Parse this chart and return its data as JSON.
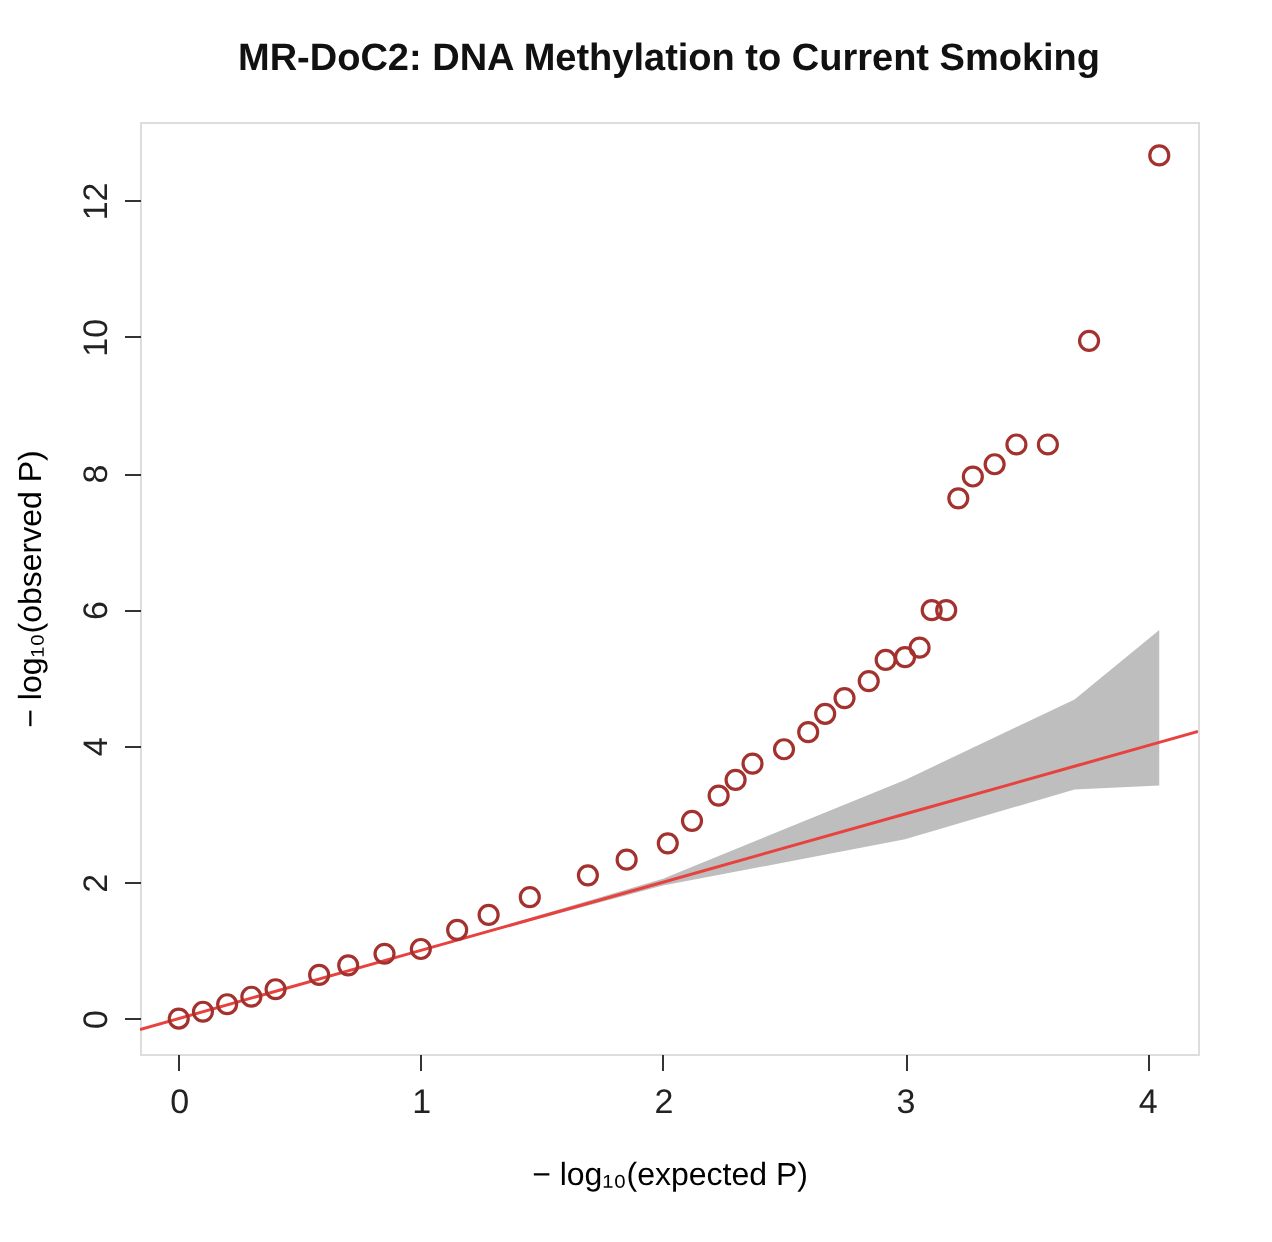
{
  "chart_data": {
    "type": "scatter",
    "title": "MR-DoC2: DNA Methylation to Current Smoking",
    "xlabel": "− log₁₀(expected P)",
    "ylabel": "− log₁₀(observed P)",
    "xlim": [
      -0.16,
      4.21
    ],
    "ylim": [
      -0.52,
      13.15
    ],
    "xticks": [
      0,
      1,
      2,
      3,
      4
    ],
    "yticks": [
      0,
      2,
      4,
      6,
      8,
      10,
      12
    ],
    "grid": false,
    "marker": "circle",
    "series": [
      {
        "type": "line",
        "marker": "none",
        "color": "#e8423f",
        "x": [
          -0.16,
          1,
          2,
          3,
          3.7,
          4.05,
          4.21
        ],
        "values": [
          -0.16,
          1,
          2,
          3,
          3.7,
          4.05,
          4.21
        ],
        "lower": [
          null,
          1,
          1.95,
          2.63,
          3.36,
          3.42,
          null
        ],
        "upper": [
          null,
          1,
          2.05,
          3.5,
          4.68,
          5.7,
          null
        ]
      },
      {
        "color": "#a3312e",
        "x": [
          0,
          0.1,
          0.2,
          0.3,
          0.4,
          0.58,
          0.7,
          0.85,
          1.0,
          1.15,
          1.28,
          1.45,
          1.69,
          1.85,
          2.02,
          2.12,
          2.23,
          2.3,
          2.37,
          2.5,
          2.6,
          2.67,
          2.75,
          2.85,
          2.92,
          3.0,
          3.06,
          3.11,
          3.17,
          3.22,
          3.28,
          3.37,
          3.46,
          3.59,
          3.76,
          4.05
        ],
        "values": [
          0,
          0.1,
          0.21,
          0.32,
          0.43,
          0.64,
          0.78,
          0.95,
          1.02,
          1.3,
          1.52,
          1.78,
          2.1,
          2.33,
          2.57,
          2.9,
          3.27,
          3.5,
          3.74,
          3.95,
          4.2,
          4.47,
          4.7,
          4.95,
          5.26,
          5.3,
          5.44,
          5.99,
          5.99,
          7.63,
          7.95,
          8.13,
          8.42,
          8.42,
          9.94,
          12.66
        ]
      }
    ]
  }
}
